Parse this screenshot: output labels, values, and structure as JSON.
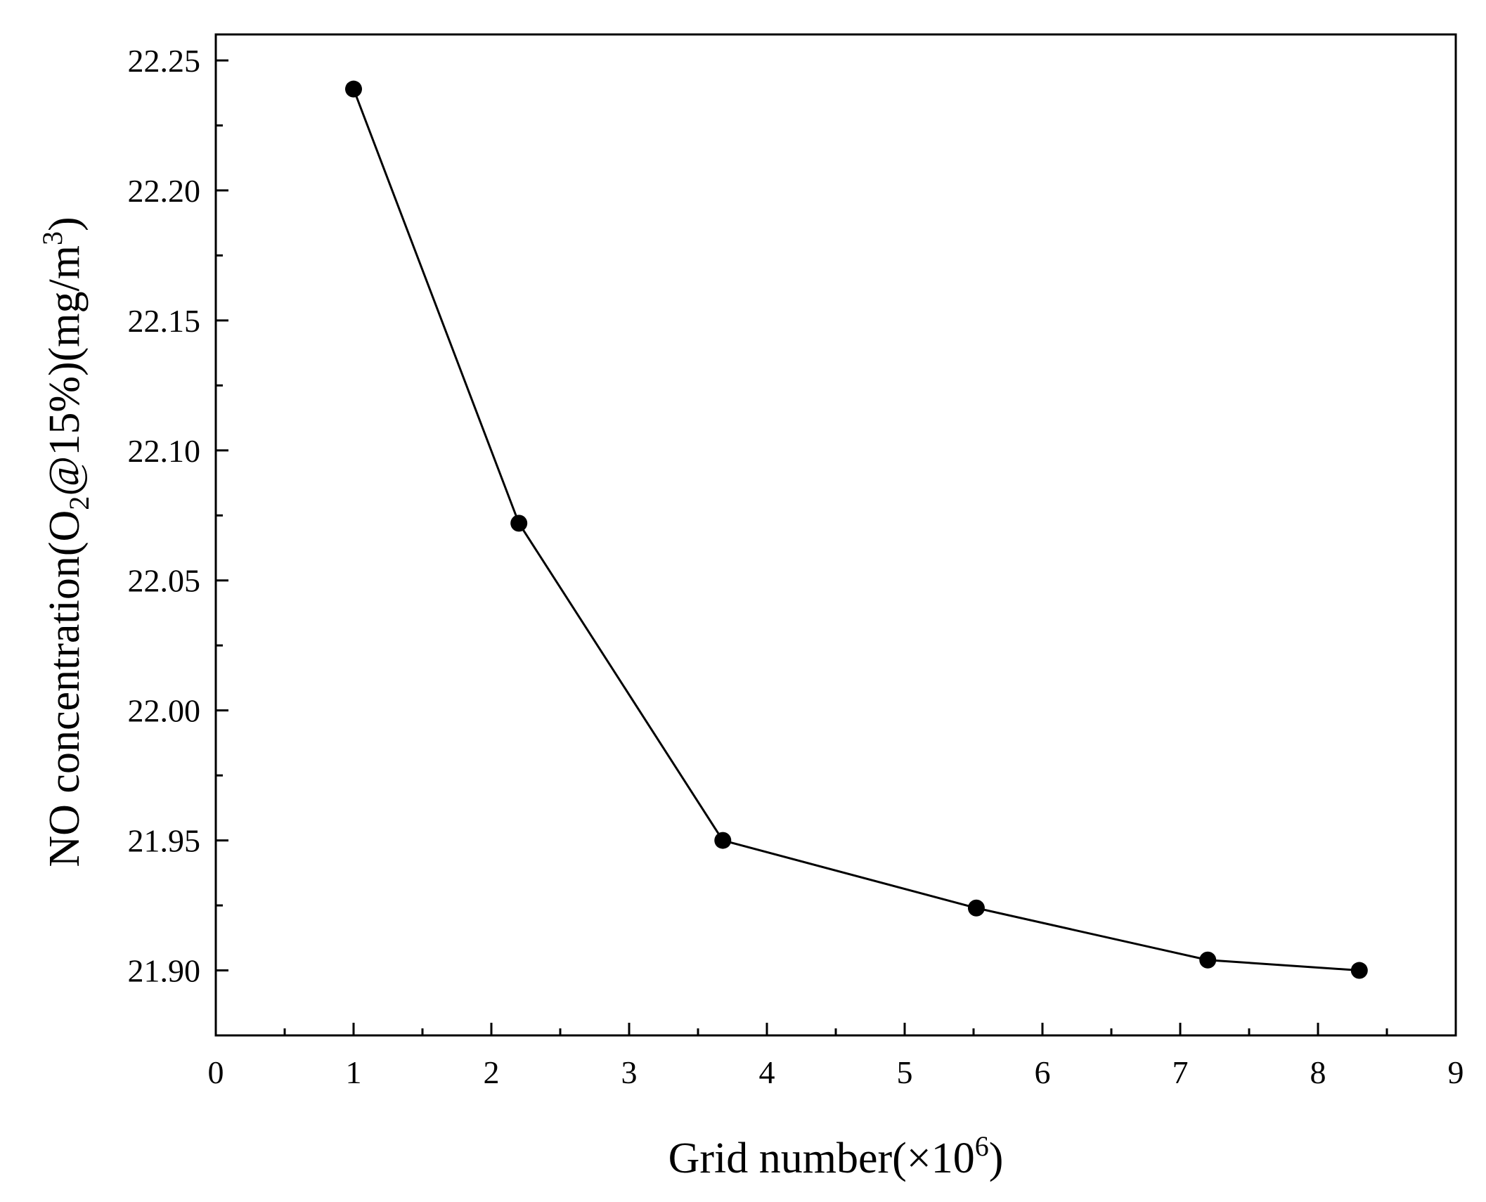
{
  "chart_data": {
    "type": "line",
    "title": "",
    "xlabel": "Grid number(×10⁶)",
    "ylabel": "NO concentration(O₂@15%)(mg/m³)",
    "xlabel_parts": {
      "main": "Grid number(×10",
      "sup": "6",
      "close": ")"
    },
    "ylabel_parts": {
      "prefix": "NO concentration(O",
      "sub": "2",
      "middle": "@15%)(mg/m",
      "sup": "3",
      "close": ")"
    },
    "xlim": [
      0,
      9
    ],
    "ylim": [
      21.875,
      22.26
    ],
    "x_ticks": [
      "0",
      "1",
      "2",
      "3",
      "4",
      "5",
      "6",
      "7",
      "8",
      "9"
    ],
    "y_ticks": [
      "21.90",
      "21.95",
      "22.00",
      "22.05",
      "22.10",
      "22.15",
      "22.20",
      "22.25"
    ],
    "grid": false,
    "marker": "filled-circle",
    "line_color": "#000000",
    "series": [
      {
        "x": [
          1.0,
          2.2,
          3.68,
          5.52,
          7.2,
          8.3
        ],
        "values": [
          22.239,
          22.072,
          21.95,
          21.924,
          21.904,
          21.9
        ]
      }
    ]
  }
}
